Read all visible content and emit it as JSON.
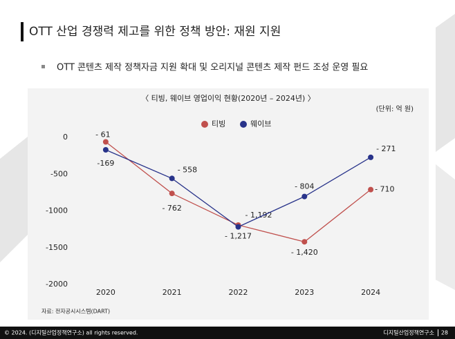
{
  "header": {
    "title": "OTT 산업 경쟁력 제고를 위한 정책 방안: 재원 지원"
  },
  "bullet": "OTT 콘텐츠 제작 정책자금 지원 확대 및 오리지널 콘텐츠 제작 펀드 조성 운영 필요",
  "chart_data": {
    "type": "line",
    "title": "〈 티빙, 웨이브 영업이익 현황(2020년 – 2024년) 〉",
    "subtitle": "(단위: 억 원)",
    "categories": [
      "2020",
      "2021",
      "2022",
      "2023",
      "2024"
    ],
    "series": [
      {
        "name": "티빙",
        "color": "#c0504d",
        "values": [
          -61,
          -762,
          -1192,
          -1420,
          -710
        ],
        "value_labels": [
          "- 61",
          "- 762",
          "- 1,192",
          "- 1,420",
          "- 710"
        ]
      },
      {
        "name": "웨이브",
        "color": "#28338a",
        "values": [
          -169,
          -558,
          -1217,
          -804,
          -271
        ],
        "value_labels": [
          "-169",
          "- 558",
          "- 1,217",
          "- 804",
          "- 271"
        ]
      }
    ],
    "ylim": [
      -2000,
      0
    ],
    "yticks": [
      0,
      -500,
      -1000,
      -1500,
      -2000
    ],
    "legend": "top"
  },
  "source": "자료: 전자공시시스템(DART)",
  "footer": {
    "copyright": "© 2024. (디지털산업정책연구소) all rights reserved.",
    "org": "디지털산업정책연구소",
    "page": "28"
  }
}
